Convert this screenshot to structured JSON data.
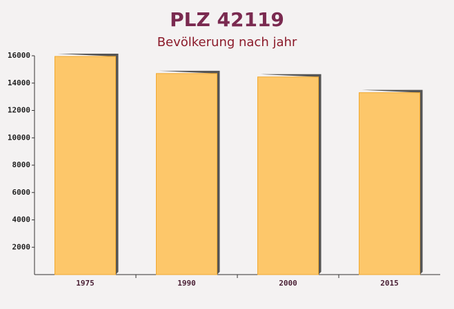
{
  "chart_data": {
    "type": "bar",
    "title": "PLZ 42119",
    "subtitle": "Bevölkerung nach jahr",
    "categories": [
      "1975",
      "1990",
      "2000",
      "2015"
    ],
    "values": [
      15950,
      14700,
      14450,
      13300
    ],
    "color": "#fdc76a",
    "ylim": [
      0,
      16000
    ],
    "yticks": [
      2000,
      4000,
      6000,
      8000,
      10000,
      12000,
      14000,
      16000
    ]
  }
}
